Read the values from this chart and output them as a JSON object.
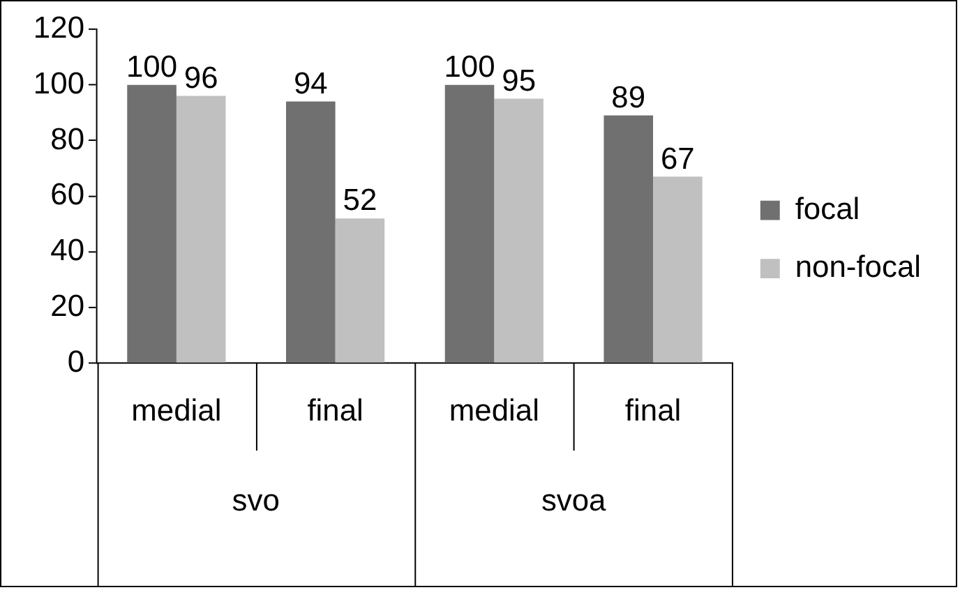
{
  "chart_data": {
    "type": "bar",
    "categories": [
      "medial",
      "final",
      "medial",
      "final"
    ],
    "series": [
      {
        "name": "focal",
        "color": "#707070",
        "values": [
          100,
          94,
          100,
          89
        ]
      },
      {
        "name": "non-focal",
        "color": "#c0c0c0",
        "values": [
          96,
          52,
          95,
          67
        ]
      }
    ],
    "ylim": [
      0,
      120
    ],
    "yticks": [
      0,
      20,
      40,
      60,
      80,
      100,
      120
    ],
    "grid": false,
    "legend": "right",
    "data_labels": true,
    "annotations": [
      "svo",
      "svoa"
    ]
  }
}
